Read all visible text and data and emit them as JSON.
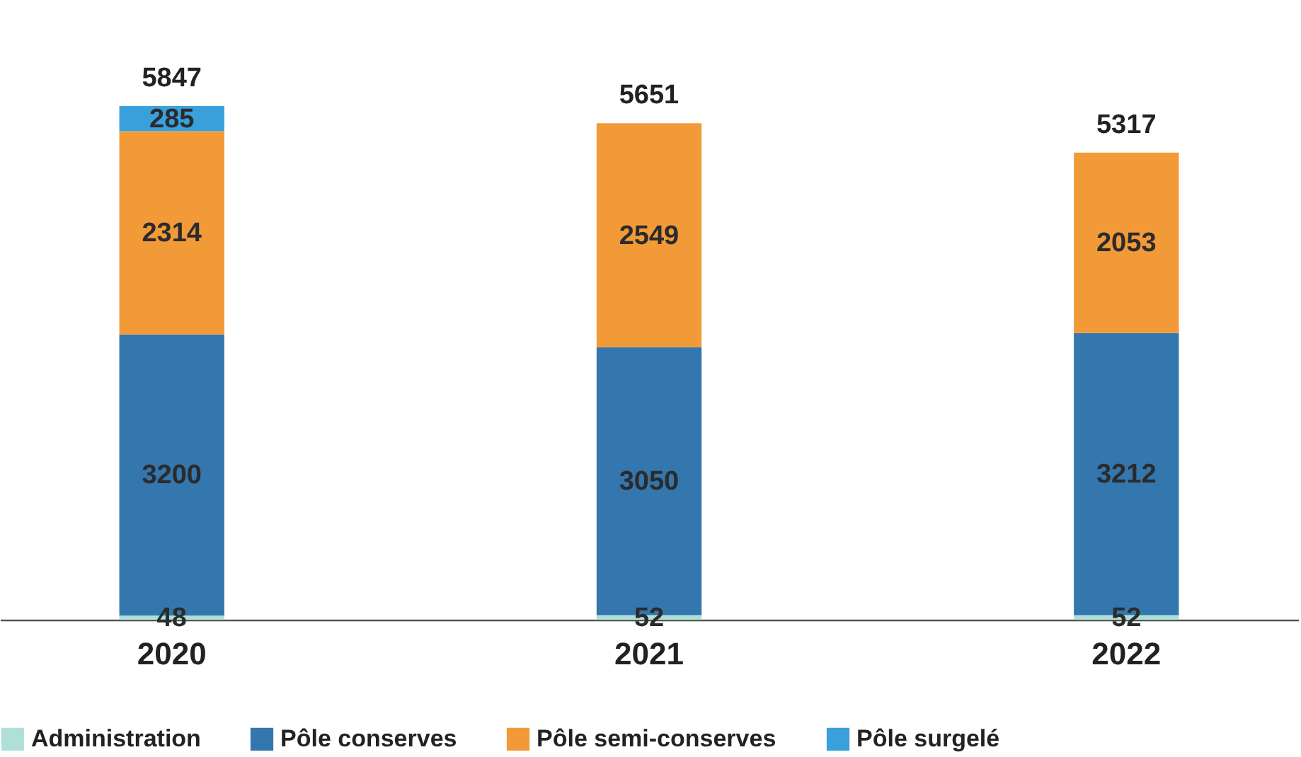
{
  "chart_data": {
    "type": "bar",
    "stacked": true,
    "categories": [
      "2020",
      "2021",
      "2022"
    ],
    "series": [
      {
        "name": "Administration",
        "color": "#aee0d8",
        "values": [
          48,
          52,
          52
        ]
      },
      {
        "name": "Pôle conserves",
        "color": "#3476ae",
        "values": [
          3200,
          3050,
          3212
        ]
      },
      {
        "name": "Pôle semi-conserves",
        "color": "#f39a38",
        "values": [
          2314,
          2549,
          2053
        ]
      },
      {
        "name": "Pôle surgelé",
        "color": "#3aa0dc",
        "values": [
          285,
          null,
          null
        ]
      }
    ],
    "data_labels": true,
    "totals": [
      "5847",
      "5651",
      "5317"
    ],
    "legend": "bottom",
    "grid": false
  }
}
